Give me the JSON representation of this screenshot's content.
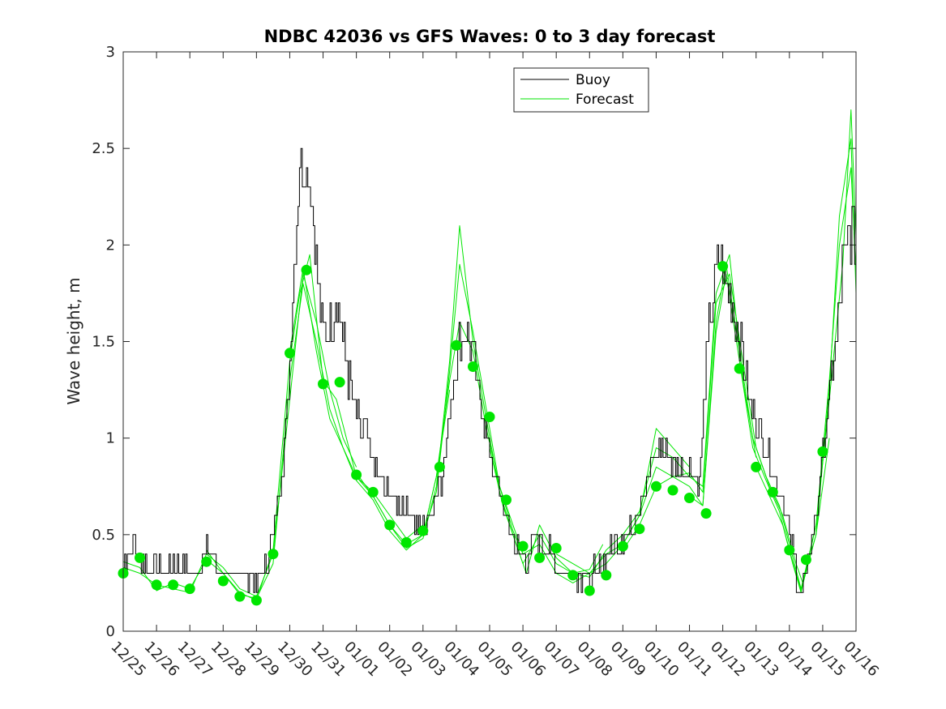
{
  "chart_data": {
    "type": "line",
    "title": "NDBC 42036 vs GFS Waves: 0 to 3 day forecast",
    "xlabel": "",
    "ylabel": "Wave height, m",
    "xlim": [
      0,
      22
    ],
    "ylim": [
      0,
      3
    ],
    "yticks": [
      0,
      0.5,
      1,
      1.5,
      2,
      2.5,
      3
    ],
    "ytick_labels": [
      "0",
      "0.5",
      "1",
      "1.5",
      "2",
      "2.5",
      "3"
    ],
    "xticks": [
      0,
      1,
      2,
      3,
      4,
      5,
      6,
      7,
      8,
      9,
      10,
      11,
      12,
      13,
      14,
      15,
      16,
      17,
      18,
      19,
      20,
      21,
      22
    ],
    "xtick_labels": [
      "12/25",
      "12/26",
      "12/27",
      "12/28",
      "12/29",
      "12/30",
      "12/31",
      "01/01",
      "01/02",
      "01/03",
      "01/04",
      "01/05",
      "01/06",
      "01/07",
      "01/08",
      "01/09",
      "01/10",
      "01/11",
      "01/12",
      "01/13",
      "01/14",
      "01/15",
      "01/16"
    ],
    "x_units": "days since 12/25",
    "legend": {
      "position": "top-center",
      "entries": [
        "Buoy",
        "Forecast"
      ]
    },
    "colors": {
      "buoy": "#000000",
      "forecast": "#00e600",
      "axis": "#262626"
    },
    "buoy": {
      "name": "Buoy",
      "anchors": [
        [
          0,
          0.35
        ],
        [
          0.3,
          0.45
        ],
        [
          0.7,
          0.35
        ],
        [
          1,
          0.3
        ],
        [
          1.5,
          0.35
        ],
        [
          2,
          0.3
        ],
        [
          2.3,
          0.35
        ],
        [
          2.5,
          0.45
        ],
        [
          2.8,
          0.35
        ],
        [
          3,
          0.3
        ],
        [
          3.5,
          0.3
        ],
        [
          4,
          0.25
        ],
        [
          4.3,
          0.35
        ],
        [
          4.6,
          0.6
        ],
        [
          4.9,
          1.1
        ],
        [
          5.1,
          1.8
        ],
        [
          5.3,
          2.45
        ],
        [
          5.6,
          2.35
        ],
        [
          5.8,
          1.9
        ],
        [
          6,
          1.5
        ],
        [
          6.2,
          1.6
        ],
        [
          6.4,
          1.75
        ],
        [
          6.7,
          1.4
        ],
        [
          7,
          1.1
        ],
        [
          7.3,
          1.0
        ],
        [
          7.6,
          0.8
        ],
        [
          8,
          0.7
        ],
        [
          8.5,
          0.65
        ],
        [
          8.9,
          0.5
        ],
        [
          9.2,
          0.6
        ],
        [
          9.6,
          0.85
        ],
        [
          10,
          1.45
        ],
        [
          10.3,
          1.55
        ],
        [
          10.6,
          1.3
        ],
        [
          11,
          0.9
        ],
        [
          11.4,
          0.65
        ],
        [
          11.8,
          0.45
        ],
        [
          12.1,
          0.35
        ],
        [
          12.4,
          0.5
        ],
        [
          12.7,
          0.45
        ],
        [
          13,
          0.35
        ],
        [
          13.5,
          0.3
        ],
        [
          14,
          0.28
        ],
        [
          14.4,
          0.35
        ],
        [
          14.8,
          0.45
        ],
        [
          15.1,
          0.5
        ],
        [
          15.4,
          0.6
        ],
        [
          15.8,
          0.85
        ],
        [
          16.2,
          0.95
        ],
        [
          16.6,
          0.85
        ],
        [
          17,
          0.85
        ],
        [
          17.3,
          0.8
        ],
        [
          17.6,
          1.6
        ],
        [
          17.9,
          1.95
        ],
        [
          18.2,
          1.75
        ],
        [
          18.5,
          1.5
        ],
        [
          18.8,
          1.2
        ],
        [
          19.1,
          1.05
        ],
        [
          19.4,
          0.9
        ],
        [
          19.7,
          0.75
        ],
        [
          20,
          0.5
        ],
        [
          20.2,
          0.3
        ],
        [
          20.35,
          0.2
        ],
        [
          20.5,
          0.3
        ],
        [
          20.8,
          0.6
        ],
        [
          21.1,
          1.1
        ],
        [
          21.4,
          1.5
        ],
        [
          21.6,
          1.9
        ],
        [
          21.9,
          2.1
        ],
        [
          22,
          2.0
        ]
      ]
    },
    "forecast_runs": [
      {
        "name": "Forecast",
        "points": [
          [
            0,
            0.33
          ],
          [
            0.5,
            0.3
          ],
          [
            1,
            0.24
          ],
          [
            1.5,
            0.22
          ],
          [
            2,
            0.2
          ],
          [
            2.5,
            0.4
          ],
          [
            3,
            0.33
          ],
          [
            3.5,
            0.22
          ],
          [
            4,
            0.18
          ],
          [
            4.5,
            0.4
          ],
          [
            5,
            1.2
          ],
          [
            5.4,
            1.85
          ],
          [
            5.8,
            1.6
          ],
          [
            6.2,
            1.25
          ],
          [
            6.6,
            1.0
          ],
          [
            7,
            0.85
          ]
        ]
      },
      {
        "name": "Forecast",
        "points": [
          [
            0,
            0.36
          ],
          [
            0.5,
            0.33
          ],
          [
            1,
            0.21
          ],
          [
            1.5,
            0.25
          ],
          [
            2,
            0.22
          ],
          [
            2.5,
            0.37
          ],
          [
            3,
            0.3
          ],
          [
            3.5,
            0.19
          ],
          [
            4,
            0.17
          ],
          [
            4.5,
            0.35
          ],
          [
            5,
            1.3
          ],
          [
            5.4,
            1.8
          ],
          [
            5.8,
            1.5
          ],
          [
            6.2,
            1.15
          ],
          [
            6.6,
            0.95
          ],
          [
            7,
            0.8
          ],
          [
            7.5,
            0.72
          ],
          [
            8,
            0.6
          ],
          [
            8.5,
            0.48
          ],
          [
            9,
            0.55
          ]
        ]
      },
      {
        "name": "Forecast",
        "points": [
          [
            2.5,
            0.42
          ],
          [
            3,
            0.3
          ],
          [
            3.5,
            0.2
          ],
          [
            4,
            0.16
          ],
          [
            4.5,
            0.42
          ],
          [
            5,
            1.4
          ],
          [
            5.3,
            1.75
          ],
          [
            5.6,
            1.95
          ],
          [
            6,
            1.3
          ],
          [
            6.4,
            1.2
          ],
          [
            7,
            0.8
          ],
          [
            7.5,
            0.7
          ],
          [
            8,
            0.55
          ],
          [
            8.5,
            0.45
          ],
          [
            9,
            0.5
          ],
          [
            9.4,
            0.8
          ],
          [
            9.8,
            1.25
          ]
        ]
      },
      {
        "name": "Forecast",
        "points": [
          [
            5,
            1.45
          ],
          [
            5.4,
            1.88
          ],
          [
            5.8,
            1.45
          ],
          [
            6.2,
            1.1
          ],
          [
            6.6,
            0.95
          ],
          [
            7,
            0.78
          ],
          [
            7.5,
            0.68
          ],
          [
            8,
            0.52
          ],
          [
            8.5,
            0.42
          ],
          [
            9,
            0.5
          ],
          [
            9.4,
            0.8
          ],
          [
            9.8,
            1.3
          ],
          [
            10.1,
            1.6
          ],
          [
            10.5,
            1.45
          ],
          [
            10.9,
            1.05
          ],
          [
            11.3,
            0.75
          ],
          [
            11.7,
            0.55
          ],
          [
            12,
            0.4
          ]
        ]
      },
      {
        "name": "Forecast",
        "points": [
          [
            7,
            0.82
          ],
          [
            7.5,
            0.7
          ],
          [
            8,
            0.55
          ],
          [
            8.5,
            0.43
          ],
          [
            9,
            0.48
          ],
          [
            9.4,
            0.75
          ],
          [
            9.8,
            1.4
          ],
          [
            10.1,
            2.1
          ],
          [
            10.5,
            1.5
          ],
          [
            10.9,
            1.1
          ],
          [
            11.3,
            0.72
          ],
          [
            11.7,
            0.5
          ],
          [
            12,
            0.35
          ],
          [
            12.5,
            0.5
          ],
          [
            13,
            0.35
          ],
          [
            13.5,
            0.3
          ],
          [
            14,
            0.32
          ],
          [
            14.4,
            0.45
          ]
        ]
      },
      {
        "name": "Forecast",
        "points": [
          [
            9,
            0.5
          ],
          [
            9.4,
            0.72
          ],
          [
            9.8,
            1.35
          ],
          [
            10.1,
            1.9
          ],
          [
            10.5,
            1.55
          ],
          [
            10.9,
            1.15
          ],
          [
            11.3,
            0.75
          ],
          [
            11.7,
            0.52
          ],
          [
            12,
            0.4
          ],
          [
            12.5,
            0.45
          ],
          [
            13,
            0.3
          ],
          [
            13.5,
            0.25
          ],
          [
            14,
            0.3
          ],
          [
            14.5,
            0.35
          ],
          [
            15,
            0.45
          ],
          [
            15.5,
            0.6
          ],
          [
            16,
            1.05
          ],
          [
            16.5,
            0.95
          ],
          [
            17,
            0.85
          ]
        ]
      },
      {
        "name": "Forecast",
        "points": [
          [
            11,
            0.95
          ],
          [
            11.4,
            0.65
          ],
          [
            11.8,
            0.45
          ],
          [
            12.1,
            0.3
          ],
          [
            12.5,
            0.55
          ],
          [
            13,
            0.38
          ],
          [
            13.5,
            0.3
          ],
          [
            14,
            0.28
          ],
          [
            14.5,
            0.42
          ],
          [
            15,
            0.5
          ],
          [
            15.5,
            0.62
          ],
          [
            16,
            0.95
          ],
          [
            16.5,
            0.9
          ],
          [
            17,
            0.8
          ],
          [
            17.4,
            0.75
          ],
          [
            17.8,
            1.75
          ],
          [
            18.2,
            1.95
          ],
          [
            18.6,
            1.3
          ],
          [
            19,
            0.9
          ]
        ]
      },
      {
        "name": "Forecast",
        "points": [
          [
            13,
            0.4
          ],
          [
            13.5,
            0.35
          ],
          [
            14,
            0.3
          ],
          [
            14.5,
            0.4
          ],
          [
            15,
            0.45
          ],
          [
            15.5,
            0.6
          ],
          [
            16,
            0.85
          ],
          [
            16.5,
            0.8
          ],
          [
            17,
            0.82
          ],
          [
            17.4,
            0.72
          ],
          [
            17.8,
            1.7
          ],
          [
            18.2,
            1.85
          ],
          [
            18.6,
            1.4
          ],
          [
            19,
            0.95
          ],
          [
            19.4,
            0.75
          ],
          [
            19.8,
            0.6
          ],
          [
            20.2,
            0.35
          ],
          [
            20.4,
            0.25
          ],
          [
            20.8,
            0.5
          ],
          [
            21.2,
            1.0
          ]
        ]
      },
      {
        "name": "Forecast",
        "points": [
          [
            15,
            0.42
          ],
          [
            15.5,
            0.55
          ],
          [
            16,
            0.75
          ],
          [
            16.5,
            0.8
          ],
          [
            17,
            0.75
          ],
          [
            17.4,
            0.65
          ],
          [
            17.8,
            1.6
          ],
          [
            18.1,
            1.9
          ],
          [
            18.5,
            1.45
          ],
          [
            18.9,
            1.0
          ],
          [
            19.3,
            0.8
          ],
          [
            19.7,
            0.65
          ],
          [
            20,
            0.45
          ],
          [
            20.35,
            0.22
          ],
          [
            20.8,
            0.55
          ],
          [
            21.2,
            1.2
          ],
          [
            21.6,
            1.9
          ],
          [
            21.85,
            2.7
          ],
          [
            22,
            2.05
          ]
        ]
      },
      {
        "name": "Forecast",
        "points": [
          [
            17,
            0.7
          ],
          [
            17.4,
            0.65
          ],
          [
            17.8,
            1.55
          ],
          [
            18.1,
            1.85
          ],
          [
            18.5,
            1.4
          ],
          [
            18.9,
            0.95
          ],
          [
            19.3,
            0.78
          ],
          [
            19.7,
            0.62
          ],
          [
            20,
            0.42
          ],
          [
            20.35,
            0.21
          ],
          [
            20.8,
            0.5
          ],
          [
            21.2,
            1.25
          ],
          [
            21.5,
            2.15
          ],
          [
            21.85,
            2.55
          ],
          [
            22,
            1.75
          ]
        ]
      },
      {
        "name": "Forecast",
        "points": [
          [
            19,
            0.85
          ],
          [
            19.4,
            0.7
          ],
          [
            19.8,
            0.55
          ],
          [
            20.1,
            0.35
          ],
          [
            20.35,
            0.2
          ],
          [
            20.8,
            0.55
          ],
          [
            21.2,
            1.3
          ],
          [
            21.5,
            2.0
          ],
          [
            21.85,
            2.4
          ],
          [
            22,
            1.85
          ]
        ]
      }
    ],
    "forecast_markers": {
      "name": "Forecast",
      "points": [
        [
          0,
          0.3
        ],
        [
          0.5,
          0.38
        ],
        [
          1,
          0.24
        ],
        [
          1.5,
          0.24
        ],
        [
          2,
          0.22
        ],
        [
          2.5,
          0.36
        ],
        [
          3,
          0.26
        ],
        [
          3.5,
          0.18
        ],
        [
          4,
          0.16
        ],
        [
          4.5,
          0.4
        ],
        [
          5,
          1.44
        ],
        [
          5.5,
          1.87
        ],
        [
          6,
          1.28
        ],
        [
          6.5,
          1.29
        ],
        [
          7,
          0.81
        ],
        [
          7.5,
          0.72
        ],
        [
          8,
          0.55
        ],
        [
          8.5,
          0.46
        ],
        [
          9,
          0.52
        ],
        [
          9.5,
          0.85
        ],
        [
          10,
          1.48
        ],
        [
          10.5,
          1.37
        ],
        [
          11,
          1.11
        ],
        [
          11.5,
          0.68
        ],
        [
          12,
          0.44
        ],
        [
          12.5,
          0.38
        ],
        [
          13,
          0.43
        ],
        [
          13.5,
          0.29
        ],
        [
          14,
          0.21
        ],
        [
          14.5,
          0.29
        ],
        [
          15,
          0.44
        ],
        [
          15.5,
          0.53
        ],
        [
          16,
          0.75
        ],
        [
          16.5,
          0.73
        ],
        [
          17,
          0.69
        ],
        [
          17.5,
          0.61
        ],
        [
          18,
          1.89
        ],
        [
          18.5,
          1.36
        ],
        [
          19,
          0.85
        ],
        [
          19.5,
          0.72
        ],
        [
          20,
          0.42
        ],
        [
          20.5,
          0.37
        ],
        [
          21,
          0.93
        ]
      ]
    }
  }
}
